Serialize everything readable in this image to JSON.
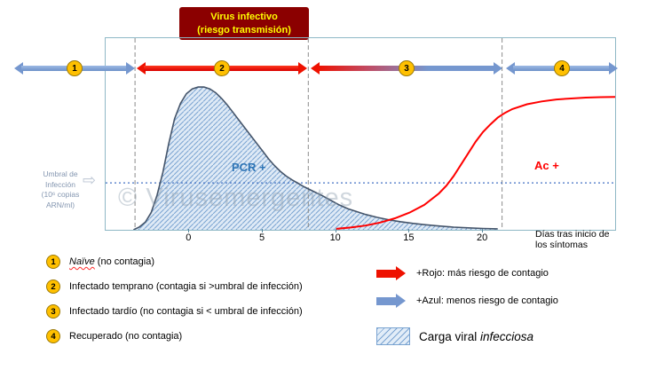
{
  "banner": {
    "line1": "Virus infectivo",
    "line2": "(riesgo transmisión)"
  },
  "phases": [
    {
      "number": "1"
    },
    {
      "number": "2"
    },
    {
      "number": "3"
    },
    {
      "number": "4"
    }
  ],
  "threshold_label": {
    "lines": [
      "Umbral de",
      "Infección",
      "(10⁶ copias",
      "ARN/ml)"
    ]
  },
  "threshold_pointer_icon": "⇨",
  "watermark": "© Virusemergentes",
  "plot_labels": {
    "pcr": "PCR +",
    "ac": "Ac +"
  },
  "x_axis": {
    "title_line1": "Días tras inicio de",
    "title_line2": "los síntomas"
  },
  "legend": {
    "items": [
      {
        "number": "1",
        "em": "Naïve",
        "rest": " (no contagia)"
      },
      {
        "number": "2",
        "em": "",
        "rest": "Infectado temprano (contagia si >umbral de infección)"
      },
      {
        "number": "3",
        "em": "",
        "rest": "Infectado tardío (no contagia si < umbral de infección)"
      },
      {
        "number": "4",
        "em": "",
        "rest": "Recuperado (no contagia)"
      }
    ],
    "red_arrow_label": "+Rojo: más riesgo de contagio",
    "blue_arrow_label": "+Azul: menos riesgo de contagio",
    "viral_load_label_normal": "Carga viral ",
    "viral_load_label_italic": "infecciosa"
  },
  "colors": {
    "banner_bg": "#8B0000",
    "banner_text": "#FFFF00",
    "phase_badge": "#FFC000",
    "red_arrow": "#EE1100",
    "blue_arrow": "#7597CF",
    "viral_curve": "#44546A",
    "viral_fill": "#DFEAF6",
    "hatch_line": "#79A3D1",
    "antibody_curve": "#FF0000",
    "threshold_line": "#4472C4",
    "pcr_label": "#2E75B6",
    "ac_label": "#FF0000",
    "plot_border": "#8FB8C6",
    "threshold_text": "#8496B0"
  },
  "chart_data": {
    "type": "area",
    "title": "Virus infectivo (riesgo transmisión)",
    "xlabel": "Días tras inicio de los síntomas",
    "ylabel": "",
    "x_range": [
      -5.7,
      29
    ],
    "x_ticks": [
      0,
      5,
      10,
      15,
      20
    ],
    "y_range": [
      0,
      100
    ],
    "threshold": 24.5,
    "threshold_label": "Umbral de Infección (10⁶ copias ARN/ml)",
    "phase_boundaries_days": [
      -3.7,
      8.1,
      21.3
    ],
    "phases": [
      {
        "number": 1,
        "label": "Naïve (no contagia)"
      },
      {
        "number": 2,
        "label": "Infectado temprano (contagia si >umbral de infección)"
      },
      {
        "number": 3,
        "label": "Infectado tardío (no contagia si < umbral de infección)"
      },
      {
        "number": 4,
        "label": "Recuperado (no contagia)"
      }
    ],
    "series": [
      {
        "name": "Carga viral (PCR +)",
        "style": "hatched-area",
        "points": [
          [
            -3.8,
            0
          ],
          [
            -3.4,
            1.5
          ],
          [
            -3,
            4
          ],
          [
            -2.6,
            9
          ],
          [
            -2.2,
            18
          ],
          [
            -1.8,
            30
          ],
          [
            -1.4,
            45
          ],
          [
            -1,
            58
          ],
          [
            -0.6,
            66
          ],
          [
            -0.2,
            71
          ],
          [
            0.2,
            73.5
          ],
          [
            0.6,
            74.5
          ],
          [
            1,
            74.5
          ],
          [
            1.4,
            73.5
          ],
          [
            1.8,
            71.5
          ],
          [
            2.2,
            68.5
          ],
          [
            2.6,
            65
          ],
          [
            3,
            61
          ],
          [
            3.4,
            57
          ],
          [
            3.8,
            53
          ],
          [
            4.2,
            49
          ],
          [
            4.6,
            45
          ],
          [
            5,
            41
          ],
          [
            5.4,
            37
          ],
          [
            5.8,
            33.5
          ],
          [
            6.2,
            30.5
          ],
          [
            6.6,
            28
          ],
          [
            7,
            26
          ],
          [
            7.4,
            24.3
          ],
          [
            7.8,
            22.5
          ],
          [
            8.2,
            21
          ],
          [
            8.6,
            19.5
          ],
          [
            9,
            18
          ],
          [
            9.6,
            15.5
          ],
          [
            10.2,
            13
          ],
          [
            10.8,
            11
          ],
          [
            11.4,
            9.5
          ],
          [
            12,
            8
          ],
          [
            12.8,
            6.5
          ],
          [
            13.6,
            5.2
          ],
          [
            14.4,
            4.2
          ],
          [
            15.2,
            3.4
          ],
          [
            16,
            2.7
          ],
          [
            17,
            2
          ],
          [
            18,
            1.4
          ],
          [
            19,
            1
          ],
          [
            20,
            0.7
          ],
          [
            21,
            0.5
          ]
        ]
      },
      {
        "name": "Anticuerpos (Ac +)",
        "style": "line",
        "points": [
          [
            10,
            0.5
          ],
          [
            11,
            1.2
          ],
          [
            12,
            2.2
          ],
          [
            13,
            3.8
          ],
          [
            14,
            6
          ],
          [
            15,
            9
          ],
          [
            16,
            13
          ],
          [
            17,
            19
          ],
          [
            17.5,
            23
          ],
          [
            18,
            28
          ],
          [
            18.5,
            34
          ],
          [
            19,
            40
          ],
          [
            19.5,
            46
          ],
          [
            20,
            51
          ],
          [
            20.5,
            55
          ],
          [
            21,
            58.5
          ],
          [
            21.5,
            61
          ],
          [
            22,
            63
          ],
          [
            23,
            65.5
          ],
          [
            24,
            67
          ],
          [
            25,
            68
          ],
          [
            26,
            68.5
          ],
          [
            27,
            69
          ],
          [
            28,
            69.2
          ],
          [
            29,
            69.3
          ]
        ]
      }
    ]
  }
}
